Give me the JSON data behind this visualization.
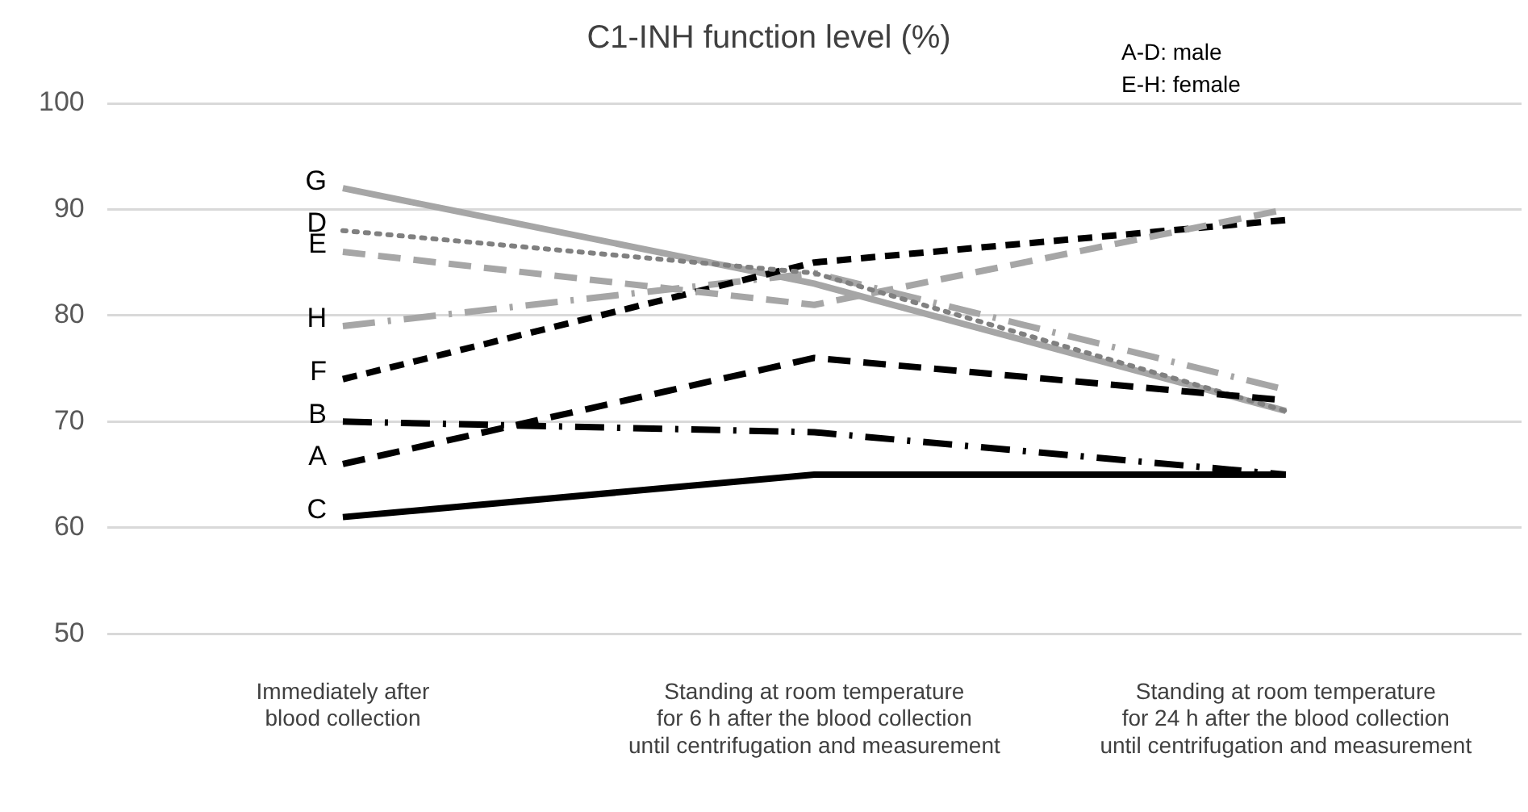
{
  "chart_data": {
    "type": "line",
    "title": "C1-INH function level (%)",
    "annotations": [
      "A-D: male",
      "E-H: female"
    ],
    "categories": [
      "Immediately after\nblood collection",
      "Standing at room temperature\nfor 6 h after the blood collection\nuntil centrifugation and measurement",
      "Standing at room temperature\nfor 24 h after the blood collection\nuntil centrifugation and measurement"
    ],
    "ylim": [
      50,
      100
    ],
    "yticks": [
      50,
      60,
      70,
      80,
      90,
      100
    ],
    "grid": "y",
    "legend": false,
    "marker": "none",
    "series": [
      {
        "name": "A",
        "color": "#000000",
        "line_style": "dashed",
        "values": [
          66,
          76,
          72
        ]
      },
      {
        "name": "B",
        "color": "#000000",
        "line_style": "dashdot",
        "values": [
          70,
          69,
          65
        ]
      },
      {
        "name": "C",
        "color": "#000000",
        "line_style": "solid",
        "values": [
          61,
          65,
          65
        ]
      },
      {
        "name": "D",
        "color": "#808080",
        "line_style": "dotted",
        "values": [
          88,
          84,
          71
        ]
      },
      {
        "name": "E",
        "color": "#a6a6a6",
        "line_style": "dashed",
        "values": [
          86,
          81,
          90
        ]
      },
      {
        "name": "F",
        "color": "#000000",
        "line_style": "shortdash",
        "values": [
          74,
          85,
          89
        ]
      },
      {
        "name": "G",
        "color": "#a6a6a6",
        "line_style": "solid",
        "values": [
          92,
          83,
          71
        ]
      },
      {
        "name": "H",
        "color": "#a6a6a6",
        "line_style": "longdashdot",
        "values": [
          79,
          84,
          73
        ]
      }
    ]
  }
}
